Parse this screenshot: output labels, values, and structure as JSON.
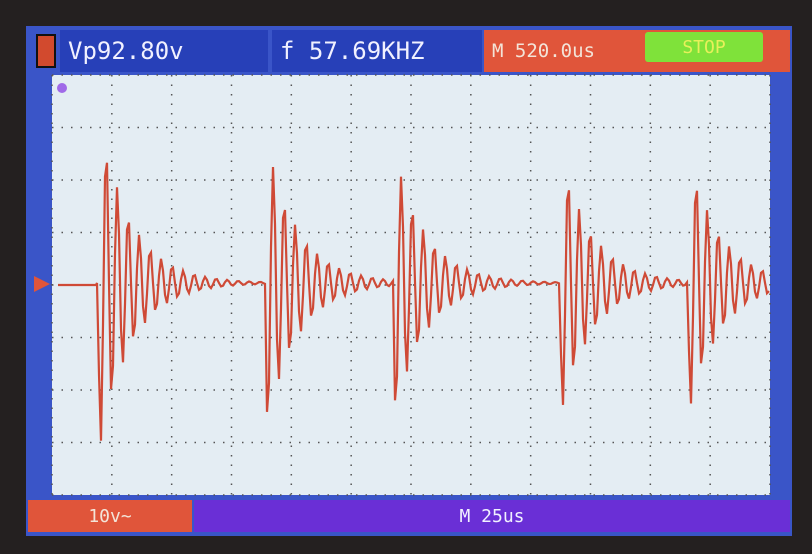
{
  "status_bar": {
    "amplitude": "Vp92.80v",
    "frequency": "f 57.69KHZ",
    "timebase_position": "M 520.0us",
    "run_state": "STOP"
  },
  "bottom_bar": {
    "channel_scale": "10v~",
    "time_scale": "M 25us"
  }
}
